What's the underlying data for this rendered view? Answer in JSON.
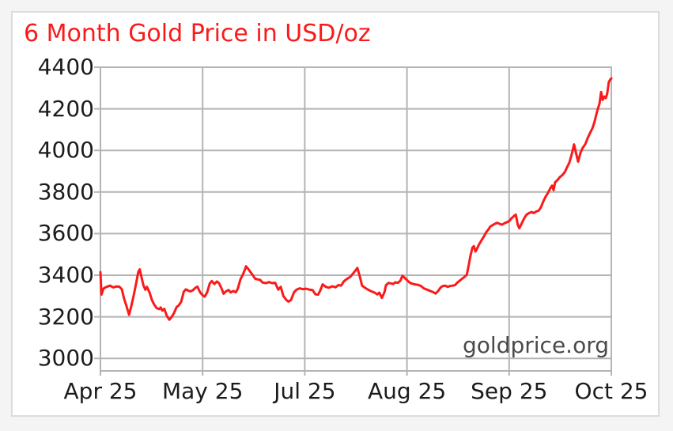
{
  "page": {
    "background": "#f4f4f4",
    "panel_background": "#ffffff",
    "panel_border_color": "#dcdcdc"
  },
  "chart": {
    "title": "6 Month Gold Price in USD/oz",
    "watermark": "goldprice.org",
    "title_color": "#fa1a1a",
    "line_color": "#fa1a1a",
    "grid_color": "#b4b4b4",
    "axis_label_color": "#1c1c1c",
    "watermark_color": "#4a4a4a"
  },
  "chart_data": {
    "type": "line",
    "title": "6 Month Gold Price in USD/oz",
    "xlabel": "",
    "ylabel": "",
    "grid": true,
    "legend": "none",
    "watermark": "goldprice.org",
    "ylim": [
      2940,
      4400
    ],
    "y_ticks": [
      3000,
      3200,
      3400,
      3600,
      3800,
      4000,
      4200,
      4400
    ],
    "x_ticks": [
      {
        "pos": 0.0,
        "label": "Apr 25"
      },
      {
        "pos": 0.2,
        "label": "May 25"
      },
      {
        "pos": 0.4,
        "label": "Jul 25"
      },
      {
        "pos": 0.6,
        "label": "Aug 25"
      },
      {
        "pos": 0.8,
        "label": "Sep 25"
      },
      {
        "pos": 1.0,
        "label": "Oct 25"
      }
    ],
    "series": [
      {
        "name": "Gold price (USD/oz)",
        "points": [
          [
            0,
            3415
          ],
          [
            0.002,
            3307
          ],
          [
            0.006,
            3336
          ],
          [
            0.012,
            3344
          ],
          [
            0.019,
            3350
          ],
          [
            0.025,
            3341
          ],
          [
            0.031,
            3346
          ],
          [
            0.037,
            3345
          ],
          [
            0.042,
            3332
          ],
          [
            0.046,
            3290
          ],
          [
            0.051,
            3252
          ],
          [
            0.056,
            3210
          ],
          [
            0.06,
            3248
          ],
          [
            0.065,
            3302
          ],
          [
            0.07,
            3362
          ],
          [
            0.074,
            3415
          ],
          [
            0.077,
            3428
          ],
          [
            0.08,
            3394
          ],
          [
            0.084,
            3352
          ],
          [
            0.088,
            3330
          ],
          [
            0.091,
            3344
          ],
          [
            0.096,
            3318
          ],
          [
            0.101,
            3280
          ],
          [
            0.105,
            3260
          ],
          [
            0.11,
            3242
          ],
          [
            0.115,
            3237
          ],
          [
            0.118,
            3245
          ],
          [
            0.121,
            3230
          ],
          [
            0.125,
            3238
          ],
          [
            0.13,
            3204
          ],
          [
            0.135,
            3186
          ],
          [
            0.139,
            3198
          ],
          [
            0.144,
            3218
          ],
          [
            0.149,
            3247
          ],
          [
            0.153,
            3254
          ],
          [
            0.158,
            3272
          ],
          [
            0.163,
            3320
          ],
          [
            0.167,
            3332
          ],
          [
            0.172,
            3326
          ],
          [
            0.176,
            3322
          ],
          [
            0.181,
            3328
          ],
          [
            0.186,
            3340
          ],
          [
            0.19,
            3345
          ],
          [
            0.195,
            3318
          ],
          [
            0.2,
            3304
          ],
          [
            0.204,
            3297
          ],
          [
            0.209,
            3318
          ],
          [
            0.214,
            3360
          ],
          [
            0.218,
            3372
          ],
          [
            0.223,
            3358
          ],
          [
            0.228,
            3370
          ],
          [
            0.232,
            3362
          ],
          [
            0.237,
            3337
          ],
          [
            0.241,
            3311
          ],
          [
            0.246,
            3323
          ],
          [
            0.251,
            3329
          ],
          [
            0.255,
            3317
          ],
          [
            0.26,
            3324
          ],
          [
            0.265,
            3318
          ],
          [
            0.269,
            3336
          ],
          [
            0.274,
            3380
          ],
          [
            0.279,
            3404
          ],
          [
            0.282,
            3422
          ],
          [
            0.285,
            3443
          ],
          [
            0.289,
            3431
          ],
          [
            0.294,
            3414
          ],
          [
            0.299,
            3397
          ],
          [
            0.303,
            3383
          ],
          [
            0.308,
            3380
          ],
          [
            0.313,
            3377
          ],
          [
            0.317,
            3365
          ],
          [
            0.324,
            3362
          ],
          [
            0.33,
            3367
          ],
          [
            0.336,
            3362
          ],
          [
            0.342,
            3364
          ],
          [
            0.348,
            3331
          ],
          [
            0.353,
            3344
          ],
          [
            0.358,
            3300
          ],
          [
            0.364,
            3281
          ],
          [
            0.368,
            3273
          ],
          [
            0.373,
            3281
          ],
          [
            0.379,
            3318
          ],
          [
            0.384,
            3331
          ],
          [
            0.39,
            3337
          ],
          [
            0.396,
            3333
          ],
          [
            0.402,
            3335
          ],
          [
            0.409,
            3331
          ],
          [
            0.415,
            3329
          ],
          [
            0.421,
            3308
          ],
          [
            0.426,
            3306
          ],
          [
            0.43,
            3325
          ],
          [
            0.435,
            3356
          ],
          [
            0.441,
            3344
          ],
          [
            0.447,
            3340
          ],
          [
            0.454,
            3347
          ],
          [
            0.46,
            3342
          ],
          [
            0.466,
            3353
          ],
          [
            0.471,
            3350
          ],
          [
            0.477,
            3372
          ],
          [
            0.483,
            3383
          ],
          [
            0.489,
            3392
          ],
          [
            0.495,
            3410
          ],
          [
            0.5,
            3425
          ],
          [
            0.503,
            3435
          ],
          [
            0.508,
            3391
          ],
          [
            0.512,
            3350
          ],
          [
            0.517,
            3341
          ],
          [
            0.522,
            3333
          ],
          [
            0.528,
            3325
          ],
          [
            0.533,
            3320
          ],
          [
            0.537,
            3316
          ],
          [
            0.542,
            3308
          ],
          [
            0.546,
            3316
          ],
          [
            0.551,
            3291
          ],
          [
            0.556,
            3319
          ],
          [
            0.559,
            3352
          ],
          [
            0.564,
            3363
          ],
          [
            0.568,
            3361
          ],
          [
            0.573,
            3358
          ],
          [
            0.577,
            3366
          ],
          [
            0.582,
            3363
          ],
          [
            0.587,
            3373
          ],
          [
            0.591,
            3397
          ],
          [
            0.594,
            3391
          ],
          [
            0.599,
            3379
          ],
          [
            0.604,
            3367
          ],
          [
            0.608,
            3361
          ],
          [
            0.615,
            3356
          ],
          [
            0.621,
            3354
          ],
          [
            0.627,
            3349
          ],
          [
            0.633,
            3337
          ],
          [
            0.639,
            3331
          ],
          [
            0.646,
            3324
          ],
          [
            0.652,
            3318
          ],
          [
            0.656,
            3312
          ],
          [
            0.661,
            3324
          ],
          [
            0.666,
            3341
          ],
          [
            0.67,
            3348
          ],
          [
            0.675,
            3350
          ],
          [
            0.68,
            3344
          ],
          [
            0.684,
            3348
          ],
          [
            0.689,
            3350
          ],
          [
            0.694,
            3352
          ],
          [
            0.698,
            3363
          ],
          [
            0.703,
            3373
          ],
          [
            0.707,
            3381
          ],
          [
            0.712,
            3391
          ],
          [
            0.717,
            3402
          ],
          [
            0.721,
            3450
          ],
          [
            0.724,
            3490
          ],
          [
            0.728,
            3532
          ],
          [
            0.731,
            3540
          ],
          [
            0.734,
            3514
          ],
          [
            0.737,
            3527
          ],
          [
            0.741,
            3548
          ],
          [
            0.746,
            3568
          ],
          [
            0.751,
            3588
          ],
          [
            0.755,
            3606
          ],
          [
            0.76,
            3622
          ],
          [
            0.763,
            3634
          ],
          [
            0.768,
            3641
          ],
          [
            0.772,
            3647
          ],
          [
            0.777,
            3652
          ],
          [
            0.782,
            3646
          ],
          [
            0.786,
            3643
          ],
          [
            0.791,
            3650
          ],
          [
            0.796,
            3655
          ],
          [
            0.8,
            3660
          ],
          [
            0.805,
            3674
          ],
          [
            0.81,
            3686
          ],
          [
            0.813,
            3691
          ],
          [
            0.817,
            3642
          ],
          [
            0.82,
            3626
          ],
          [
            0.825,
            3651
          ],
          [
            0.83,
            3676
          ],
          [
            0.834,
            3691
          ],
          [
            0.839,
            3699
          ],
          [
            0.844,
            3704
          ],
          [
            0.848,
            3699
          ],
          [
            0.853,
            3706
          ],
          [
            0.858,
            3711
          ],
          [
            0.862,
            3726
          ],
          [
            0.867,
            3756
          ],
          [
            0.871,
            3776
          ],
          [
            0.876,
            3796
          ],
          [
            0.881,
            3820
          ],
          [
            0.884,
            3831
          ],
          [
            0.887,
            3809
          ],
          [
            0.89,
            3846
          ],
          [
            0.895,
            3859
          ],
          [
            0.899,
            3871
          ],
          [
            0.904,
            3881
          ],
          [
            0.909,
            3896
          ],
          [
            0.913,
            3917
          ],
          [
            0.918,
            3942
          ],
          [
            0.923,
            3986
          ],
          [
            0.927,
            4029
          ],
          [
            0.932,
            3976
          ],
          [
            0.935,
            3946
          ],
          [
            0.94,
            3991
          ],
          [
            0.944,
            4012
          ],
          [
            0.949,
            4030
          ],
          [
            0.954,
            4061
          ],
          [
            0.958,
            4082
          ],
          [
            0.963,
            4106
          ],
          [
            0.967,
            4136
          ],
          [
            0.972,
            4186
          ],
          [
            0.977,
            4226
          ],
          [
            0.98,
            4281
          ],
          [
            0.983,
            4243
          ],
          [
            0.986,
            4259
          ],
          [
            0.989,
            4251
          ],
          [
            0.992,
            4273
          ],
          [
            0.995,
            4328
          ],
          [
            0.998,
            4341
          ],
          [
            1,
            4346
          ]
        ]
      }
    ]
  }
}
